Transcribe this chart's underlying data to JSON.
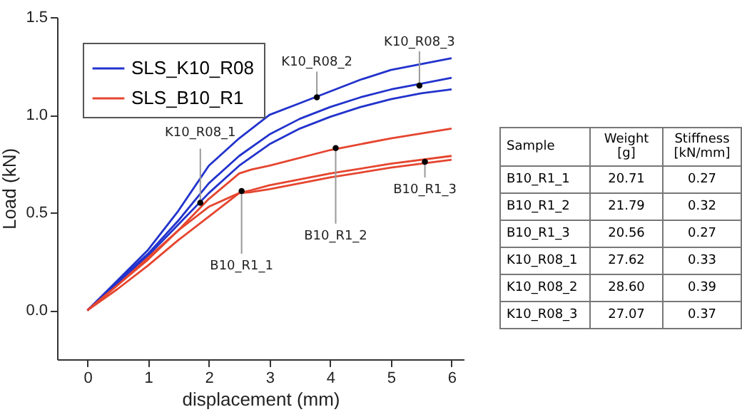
{
  "chart_data": [
    {
      "type": "line",
      "xlabel": "displacement (mm)",
      "ylabel": "Load (kN)",
      "xlim": [
        -0.5,
        6.2
      ],
      "xticks": [
        0,
        1,
        2,
        3,
        4,
        5,
        6
      ],
      "ylim": [
        -0.25,
        1.5
      ],
      "yticks": [
        {
          "value": 0,
          "label": "0.0"
        },
        {
          "value": 0.5,
          "label": "0.5"
        },
        {
          "value": 1,
          "label": "1.0"
        },
        {
          "value": 1.5,
          "label": "1.5"
        }
      ],
      "legend": "top left",
      "marker": "none",
      "line_style": "solid",
      "series": [
        {
          "name": "SLS_K10_R08",
          "color": "#2233cc",
          "x": [
            0,
            0.5,
            1,
            1.5,
            2,
            2.5,
            3,
            3.5,
            4,
            4.5,
            5,
            5.5,
            6
          ],
          "values": [
            0,
            0.155,
            0.31,
            0.51,
            0.74,
            0.88,
            1.0,
            1.06,
            1.12,
            1.18,
            1.23,
            1.26,
            1.29
          ]
        },
        {
          "color": "#2233cc",
          "x": [
            0,
            0.5,
            1,
            1.5,
            2,
            2.5,
            3,
            3.5,
            4,
            4.5,
            5,
            5.5,
            6
          ],
          "values": [
            0,
            0.15,
            0.29,
            0.46,
            0.65,
            0.79,
            0.9,
            0.98,
            1.04,
            1.09,
            1.13,
            1.16,
            1.19
          ]
        },
        {
          "color": "#2233cc",
          "x": [
            0,
            0.5,
            1,
            1.5,
            2,
            2.5,
            3,
            3.5,
            4,
            4.5,
            5,
            5.5,
            6
          ],
          "values": [
            0,
            0.14,
            0.28,
            0.44,
            0.6,
            0.74,
            0.85,
            0.93,
            0.99,
            1.04,
            1.08,
            1.11,
            1.13
          ]
        },
        {
          "name": "SLS_B10_R1",
          "color": "#e5452f",
          "x": [
            0,
            0.5,
            1,
            1.5,
            2,
            2.5,
            2.7,
            3,
            4,
            5,
            6
          ],
          "values": [
            0,
            0.13,
            0.26,
            0.41,
            0.57,
            0.7,
            0.72,
            0.74,
            0.82,
            0.88,
            0.93
          ]
        },
        {
          "color": "#e5452f",
          "x": [
            0,
            0.5,
            1,
            1.5,
            2,
            2.5,
            2.7,
            3,
            4,
            5,
            6
          ],
          "values": [
            0,
            0.11,
            0.23,
            0.36,
            0.48,
            0.6,
            0.615,
            0.64,
            0.7,
            0.75,
            0.79
          ]
        },
        {
          "color": "#e5452f",
          "x": [
            0,
            0.5,
            1,
            1.5,
            2,
            2.5,
            2.7,
            3,
            4,
            5,
            6
          ],
          "values": [
            0,
            0.13,
            0.27,
            0.41,
            0.53,
            0.6,
            0.605,
            0.62,
            0.68,
            0.73,
            0.77
          ]
        }
      ],
      "annotations": [
        {
          "text": "K10_R08_1",
          "x": 1.86,
          "y": 0.55
        },
        {
          "text": "K10_R08_2",
          "x": 3.78,
          "y": 1.09
        },
        {
          "text": "K10_R08_3",
          "x": 5.47,
          "y": 1.15
        },
        {
          "text": "B10_R1_1",
          "x": 2.54,
          "y": 0.61
        },
        {
          "text": "B10_R1_2",
          "x": 4.09,
          "y": 0.83
        },
        {
          "text": "B10_R1_3",
          "x": 5.56,
          "y": 0.76
        }
      ]
    },
    {
      "type": "other",
      "annotations": [
        "Sample",
        "Weight [g]",
        "Stiffness [kN/mm]",
        "B10_R1_1",
        "20.71",
        "0.27",
        "B10_R1_2",
        "21.79",
        "0.32",
        "B10_R1_3",
        "20.56",
        "0.27",
        "K10_R08_1",
        "27.62",
        "0.33",
        "K10_R08_2",
        "28.60",
        "0.39",
        "K10_R08_3",
        "27.07",
        "0.37"
      ]
    }
  ]
}
